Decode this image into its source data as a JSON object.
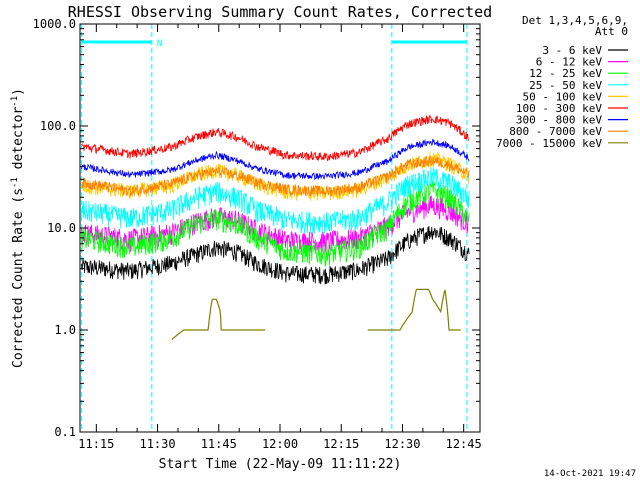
{
  "chart_data": {
    "type": "line",
    "title": "RHESSI Observing Summary Count Rates, Corrected",
    "xlabel": "Start Time (22-May-09 11:11:22)",
    "ylabel_main": "Corrected Count Rate (s",
    "ylabel_sup1": "-1",
    "ylabel_mid": " detector",
    "ylabel_sup2": "-1",
    "ylabel_end": ")",
    "y_scale": "log",
    "ylim": [
      0.1,
      1000
    ],
    "y_ticks": [
      {
        "value": 0.1,
        "label": "0.1"
      },
      {
        "value": 1,
        "label": "1.0"
      },
      {
        "value": 10,
        "label": "10.0"
      },
      {
        "value": 100,
        "label": "100.0"
      },
      {
        "value": 1000,
        "label": "1000.0"
      }
    ],
    "xlim_minutes": [
      -0.4,
      97.6
    ],
    "x_ticks": [
      {
        "minute": 3.6,
        "label": "11:15"
      },
      {
        "minute": 18.6,
        "label": "11:30"
      },
      {
        "minute": 33.6,
        "label": "11:45"
      },
      {
        "minute": 48.6,
        "label": "12:00"
      },
      {
        "minute": 63.6,
        "label": "12:15"
      },
      {
        "minute": 78.6,
        "label": "12:30"
      },
      {
        "minute": 93.6,
        "label": "12:45"
      }
    ],
    "legend_header": [
      "Det 1,3,4,5,6,9,",
      "Att 0"
    ],
    "legend_placement": "right",
    "series": [
      {
        "name": "3 - 6 keV",
        "color": "#000000",
        "x": [
          0,
          12,
          22,
          28,
          33,
          38,
          43,
          50,
          60,
          68,
          75,
          80,
          86,
          90,
          95
        ],
        "y": [
          4.2,
          3.8,
          4.5,
          5.5,
          6.5,
          5.8,
          4.5,
          3.6,
          3.5,
          3.9,
          5.0,
          7.5,
          9.5,
          8.0,
          5.5
        ]
      },
      {
        "name": "6 - 12 keV",
        "color": "#ff00ff",
        "x": [
          0,
          12,
          22,
          28,
          33,
          38,
          43,
          50,
          60,
          68,
          75,
          80,
          86,
          90,
          95
        ],
        "y": [
          9,
          7.8,
          9,
          11.5,
          13,
          12,
          9.5,
          7.6,
          7.4,
          8,
          10.5,
          14.5,
          17,
          15,
          11
        ]
      },
      {
        "name": "12 - 25 keV",
        "color": "#00ff00",
        "x": [
          0,
          12,
          22,
          28,
          33,
          38,
          43,
          50,
          60,
          68,
          75,
          80,
          86,
          90,
          95
        ],
        "y": [
          8,
          6.5,
          8,
          11,
          12.5,
          11,
          8,
          6,
          5.6,
          6.5,
          10,
          18,
          24,
          20,
          11.5
        ]
      },
      {
        "name": "25 - 50 keV",
        "color": "#00ffff",
        "x": [
          0,
          12,
          22,
          28,
          33,
          38,
          43,
          50,
          60,
          68,
          75,
          80,
          86,
          90,
          95
        ],
        "y": [
          15,
          12.5,
          15,
          20,
          23,
          20,
          15,
          12,
          11.5,
          12.5,
          18,
          27,
          32,
          28,
          19
        ]
      },
      {
        "name": "50 - 100 keV",
        "color": "#ffcc00",
        "x": [
          0,
          12,
          22,
          28,
          33,
          38,
          43,
          50,
          60,
          68,
          75,
          80,
          86,
          90,
          95
        ],
        "y": [
          26,
          23,
          26,
          33,
          37,
          33,
          27,
          22.5,
          22,
          24,
          31,
          42,
          48,
          43,
          32
        ]
      },
      {
        "name": "100 - 300 keV",
        "color": "#ff0000",
        "x": [
          0,
          12,
          22,
          28,
          33,
          38,
          43,
          50,
          60,
          68,
          75,
          80,
          86,
          90,
          95
        ],
        "y": [
          63,
          53,
          62,
          78,
          88,
          78,
          63,
          52,
          50,
          55,
          75,
          105,
          118,
          108,
          75
        ]
      },
      {
        "name": "300 - 800 keV",
        "color": "#0000ff",
        "x": [
          0,
          12,
          22,
          28,
          33,
          38,
          43,
          50,
          60,
          68,
          75,
          80,
          86,
          90,
          95
        ],
        "y": [
          40,
          33,
          37,
          46,
          52,
          46,
          38,
          33,
          32,
          35,
          45,
          62,
          70,
          64,
          48
        ]
      },
      {
        "name": "800 - 7000 keV",
        "color": "#ff8000",
        "x": [
          0,
          12,
          22,
          28,
          33,
          38,
          43,
          50,
          60,
          68,
          75,
          80,
          86,
          90,
          95
        ],
        "y": [
          28,
          23,
          27,
          33,
          36,
          33,
          28,
          24,
          23,
          25,
          32,
          42,
          46,
          42,
          33
        ]
      },
      {
        "name": "7000 - 15000 keV",
        "color": "#808000",
        "x": [
          15,
          17,
          22,
          25,
          27,
          29,
          31,
          32,
          33,
          34,
          34.2,
          36,
          45,
          48,
          70,
          73,
          75,
          77,
          78,
          81,
          82,
          85,
          86,
          88,
          89,
          90,
          92,
          93
        ],
        "y": [
          null,
          null,
          0.8,
          1,
          1,
          1,
          1,
          2,
          2,
          1.5,
          1,
          1,
          1,
          null,
          1,
          1,
          1,
          1,
          1,
          1.5,
          2.5,
          2.5,
          2,
          1.5,
          2.5,
          1,
          1,
          1
        ]
      }
    ],
    "bars": [
      {
        "label": "N",
        "x_start_minute": 0,
        "x_end_minute": 17.2,
        "color": "#00ffff"
      },
      {
        "label": "",
        "x_start_minute": 76,
        "x_end_minute": 94.4,
        "color": "#00ffff"
      }
    ],
    "vlines_minutes": [
      0,
      17.2,
      76,
      94.4
    ],
    "vline_color": "#00ffff"
  },
  "footer_date": "14-Oct-2021 19:47"
}
